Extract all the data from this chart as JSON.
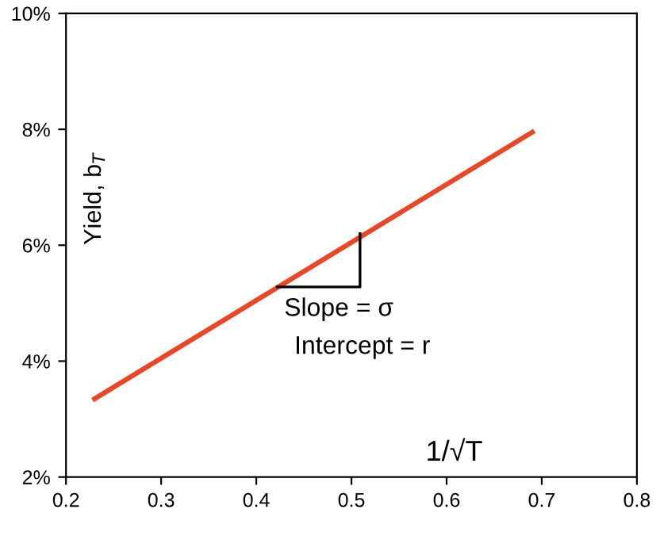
{
  "chart_data": {
    "type": "line",
    "xlabel": "1/√T",
    "ylabel": "Yield, b$_{T}$",
    "x": [
      0.23,
      0.69
    ],
    "series": [
      {
        "color": "#e8482a",
        "values": [
          3.35,
          7.95
        ]
      }
    ],
    "xlim": [
      0.2,
      0.8
    ],
    "xticks": [
      0.2,
      0.3,
      0.4,
      0.5,
      0.6,
      0.7,
      0.8
    ],
    "ylim": [
      2,
      10
    ],
    "yticks": [
      {
        "value": 2,
        "label": "2%"
      },
      {
        "value": 4,
        "label": "4%"
      },
      {
        "value": 6,
        "label": "6%"
      },
      {
        "value": 8,
        "label": "8%"
      },
      {
        "value": 10,
        "label": "10%"
      }
    ],
    "annotations": [
      {
        "text": "Slope = σ",
        "x": 0.42,
        "y": 5.25
      },
      "Intercept = r"
    ],
    "grid": false,
    "legend": false,
    "marker": "none",
    "line_style": "solid"
  }
}
